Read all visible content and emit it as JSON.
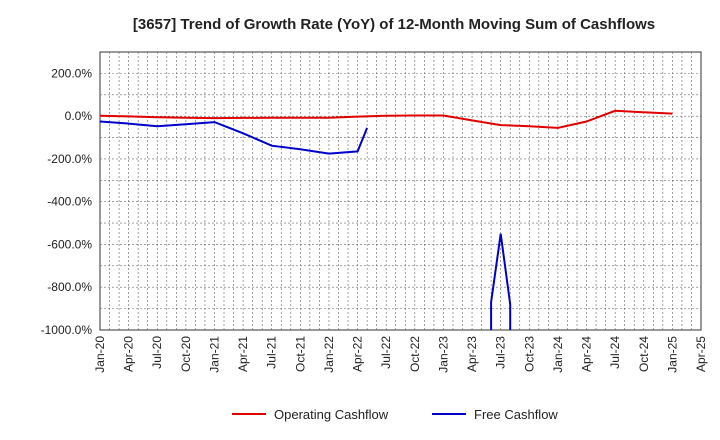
{
  "chart_data": {
    "type": "line",
    "title": "[3657]  Trend of Growth Rate (YoY) of 12-Month Moving Sum of Cashflows",
    "xlabel": "",
    "ylabel": "",
    "ylim": [
      -1000,
      300
    ],
    "xlim": [
      "2020-01",
      "2025-04"
    ],
    "grid": true,
    "legend_position": "bottom",
    "y_ticks": [
      "200.0%",
      "0.0%",
      "-200.0%",
      "-400.0%",
      "-600.0%",
      "-800.0%",
      "-1000.0%"
    ],
    "x_ticks": [
      "Jan-20",
      "Apr-20",
      "Jul-20",
      "Oct-20",
      "Jan-21",
      "Apr-21",
      "Jul-21",
      "Oct-21",
      "Jan-22",
      "Apr-22",
      "Jul-22",
      "Oct-22",
      "Jan-23",
      "Apr-23",
      "Jul-23",
      "Oct-23",
      "Jan-24",
      "Apr-24",
      "Jul-24",
      "Oct-24",
      "Jan-25",
      "Apr-25"
    ],
    "series": [
      {
        "name": "Operating Cashflow",
        "color": "#e00000",
        "points": [
          [
            "2020-01",
            2
          ],
          [
            "2020-04",
            -1
          ],
          [
            "2020-07",
            -5
          ],
          [
            "2020-10",
            -7
          ],
          [
            "2021-01",
            -9
          ],
          [
            "2021-04",
            -8
          ],
          [
            "2021-07",
            -7
          ],
          [
            "2021-10",
            -7
          ],
          [
            "2022-01",
            -7
          ],
          [
            "2022-04",
            -2
          ],
          [
            "2022-07",
            2
          ],
          [
            "2022-10",
            3
          ],
          [
            "2023-01",
            3
          ],
          [
            "2023-04",
            -20
          ],
          [
            "2023-07",
            -42
          ],
          [
            "2023-10",
            -47
          ],
          [
            "2024-01",
            -55
          ],
          [
            "2024-04",
            -25
          ],
          [
            "2024-07",
            25
          ],
          [
            "2024-10",
            18
          ],
          [
            "2025-01",
            12
          ]
        ]
      },
      {
        "name": "Free Cashflow",
        "color": "#0000cc",
        "segments": [
          [
            [
              "2020-01",
              -25
            ],
            [
              "2020-04",
              -35
            ],
            [
              "2020-07",
              -47
            ],
            [
              "2020-10",
              -38
            ],
            [
              "2021-01",
              -28
            ],
            [
              "2021-04",
              -80
            ],
            [
              "2021-07",
              -138
            ],
            [
              "2021-10",
              -155
            ],
            [
              "2022-01",
              -175
            ],
            [
              "2022-04",
              -165
            ],
            [
              "2022-05",
              -55
            ]
          ],
          [
            [
              "2023-06",
              -1000
            ],
            [
              "2023-06",
              -870
            ],
            [
              "2023-07",
              -550
            ],
            [
              "2023-08",
              -880
            ],
            [
              "2023-08",
              -1000
            ]
          ]
        ]
      }
    ]
  }
}
